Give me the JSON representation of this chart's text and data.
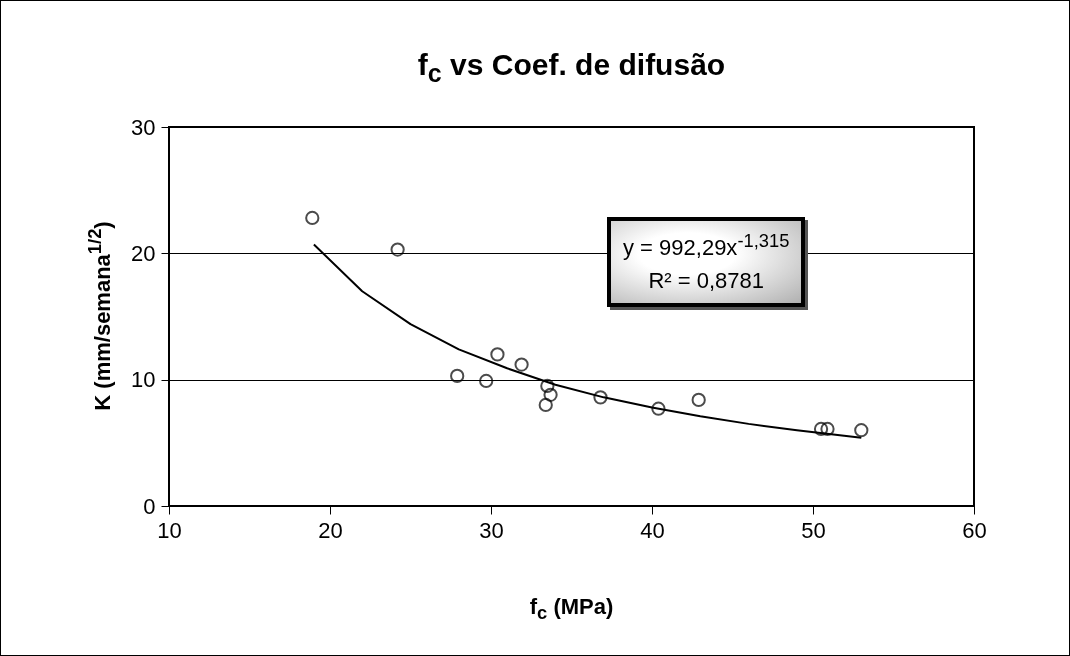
{
  "chart_data": {
    "type": "scatter",
    "title": "f$_{c}$ vs Coef. de difusão",
    "xlabel": "f$_{c}$ (MPa)",
    "ylabel": "K (mm/semana$^{1/2}$)",
    "xlim": [
      10,
      60
    ],
    "xticks": [
      10,
      20,
      30,
      40,
      50,
      60
    ],
    "ylim": [
      0,
      30
    ],
    "yticks": [
      0,
      10,
      20,
      30
    ],
    "grid": "y",
    "marker": "circle",
    "series": [
      {
        "color": "#000000",
        "x": [
          18.9,
          24.2,
          27.9,
          29.7,
          30.4,
          31.9,
          33.5,
          33.7,
          33.4,
          36.8,
          40.4,
          42.9,
          50.5,
          50.9,
          53.0
        ],
        "values": [
          22.8,
          20.3,
          10.3,
          9.9,
          12.0,
          11.2,
          9.5,
          8.8,
          8.0,
          8.6,
          7.7,
          8.4,
          6.1,
          6.1,
          6.0
        ]
      },
      {
        "type": "line",
        "marker": "none",
        "color": "#000000",
        "x": [
          19,
          22,
          25,
          28,
          31,
          34,
          37,
          40,
          43,
          46,
          49,
          53
        ],
        "values": [
          20.7,
          17.0,
          14.4,
          12.4,
          10.9,
          9.6,
          8.6,
          7.8,
          7.1,
          6.5,
          6.0,
          5.4
        ]
      }
    ],
    "annotations": [
      "y = 992,29x$^{-1,315}$",
      "R² = 0,8781"
    ]
  }
}
